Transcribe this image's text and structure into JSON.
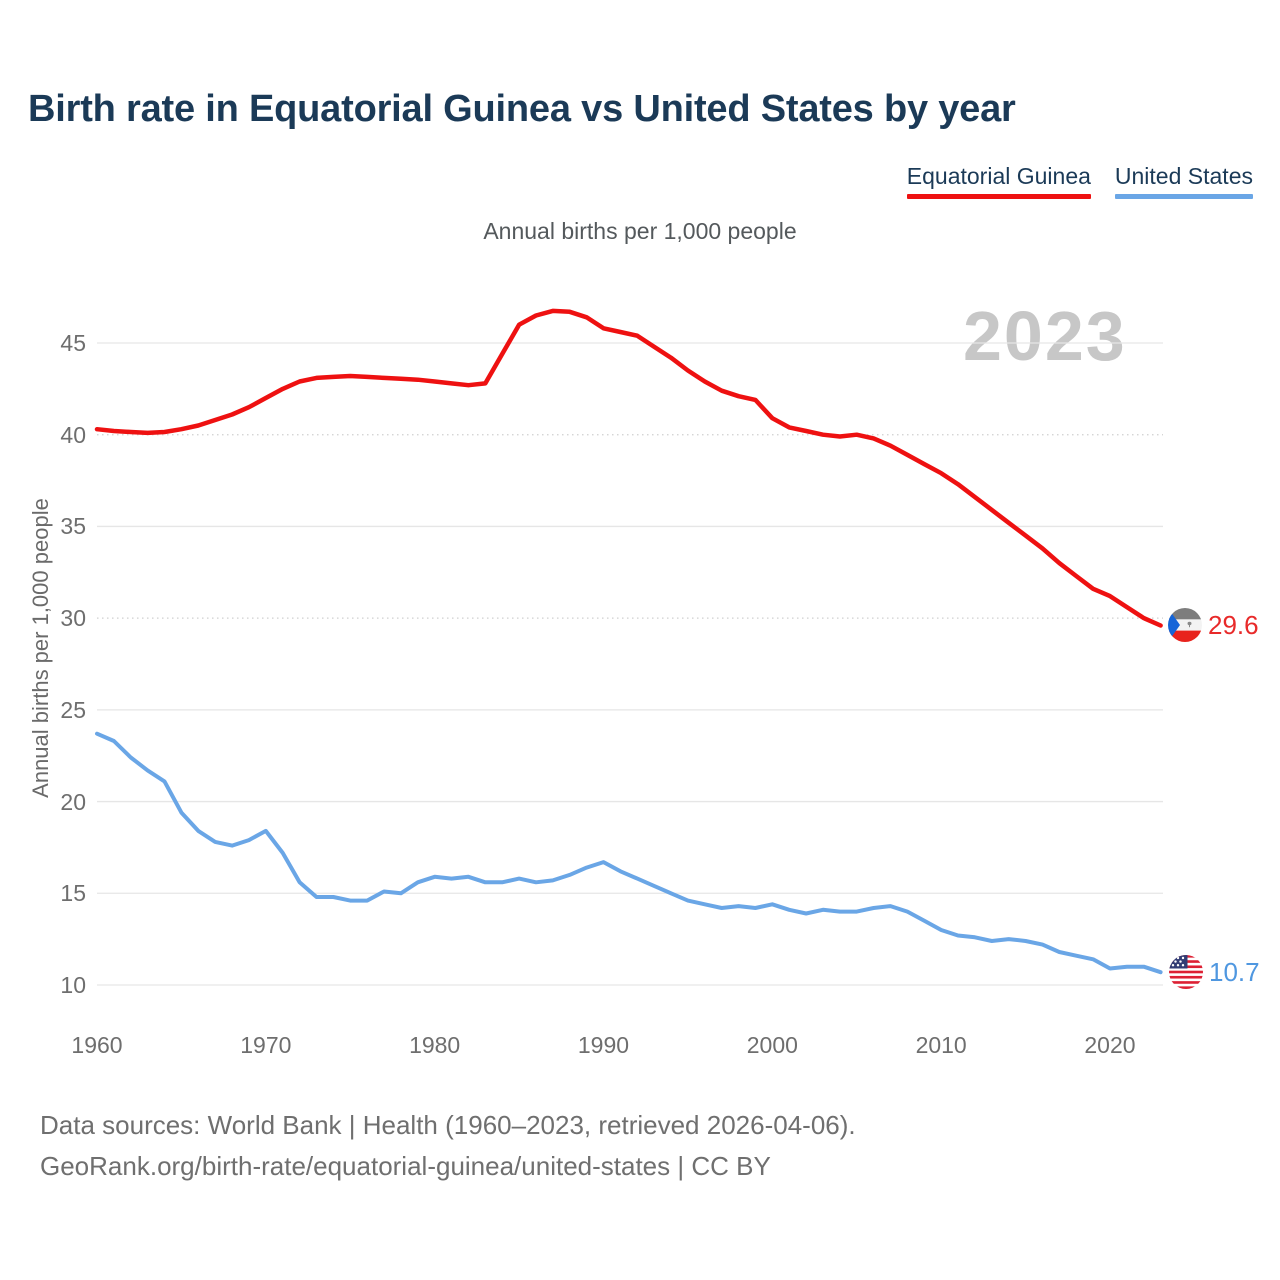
{
  "header": {
    "title": "Birth rate in Equatorial Guinea vs United States by year"
  },
  "legend": {
    "position": "top-right",
    "items": [
      {
        "label": "Equatorial Guinea",
        "color": "#ee1111"
      },
      {
        "label": "United States",
        "color": "#6aa6e6"
      }
    ]
  },
  "subtitle": "Annual births per 1,000 people",
  "watermark": "2023",
  "chart_data": {
    "type": "line",
    "title": "Birth rate in Equatorial Guinea vs United States by year",
    "xlabel": "",
    "ylabel": "Annual births per 1,000 people",
    "xticks": [
      1960,
      1970,
      1980,
      1990,
      2000,
      2010,
      2020
    ],
    "yticks": [
      45,
      40,
      35,
      30,
      25,
      20,
      15,
      10
    ],
    "dotted_gridlines": [
      40,
      30
    ],
    "xlim": [
      1960,
      2023
    ],
    "ylim": [
      8,
      48.5
    ],
    "grid": "horizontal-only",
    "x": [
      1960,
      1961,
      1962,
      1963,
      1964,
      1965,
      1966,
      1967,
      1968,
      1969,
      1970,
      1971,
      1972,
      1973,
      1974,
      1975,
      1976,
      1977,
      1978,
      1979,
      1980,
      1981,
      1982,
      1983,
      1984,
      1985,
      1986,
      1987,
      1988,
      1989,
      1990,
      1991,
      1992,
      1993,
      1994,
      1995,
      1996,
      1997,
      1998,
      1999,
      2000,
      2001,
      2002,
      2003,
      2004,
      2005,
      2006,
      2007,
      2008,
      2009,
      2010,
      2011,
      2012,
      2013,
      2014,
      2015,
      2016,
      2017,
      2018,
      2019,
      2020,
      2021,
      2022,
      2023
    ],
    "series": [
      {
        "name": "Equatorial Guinea",
        "color": "#ee1111",
        "end_value": 29.6,
        "end_label": "29.6",
        "flag": "equatorial-guinea",
        "values": [
          40.3,
          40.2,
          40.15,
          40.1,
          40.15,
          40.3,
          40.5,
          40.8,
          41.1,
          41.5,
          42.0,
          42.5,
          42.9,
          43.1,
          43.15,
          43.2,
          43.15,
          43.1,
          43.05,
          43.0,
          42.9,
          42.8,
          42.7,
          42.8,
          44.4,
          46.0,
          46.5,
          46.75,
          46.7,
          46.4,
          45.8,
          45.6,
          45.4,
          44.8,
          44.2,
          43.5,
          42.9,
          42.4,
          42.1,
          41.9,
          40.9,
          40.4,
          40.2,
          40.0,
          39.9,
          40.0,
          39.8,
          39.4,
          38.9,
          38.4,
          37.9,
          37.3,
          36.6,
          35.9,
          35.2,
          34.5,
          33.8,
          33.0,
          32.3,
          31.6,
          31.2,
          30.6,
          30.0,
          29.6
        ]
      },
      {
        "name": "United States",
        "color": "#6aa6e6",
        "end_value": 10.7,
        "end_label": "10.7",
        "flag": "united-states",
        "values": [
          23.7,
          23.3,
          22.4,
          21.7,
          21.1,
          19.4,
          18.4,
          17.8,
          17.6,
          17.9,
          18.4,
          17.2,
          15.6,
          14.8,
          14.8,
          14.6,
          14.6,
          15.1,
          15.0,
          15.6,
          15.9,
          15.8,
          15.9,
          15.6,
          15.6,
          15.8,
          15.6,
          15.7,
          16.0,
          16.4,
          16.7,
          16.2,
          15.8,
          15.4,
          15.0,
          14.6,
          14.4,
          14.2,
          14.3,
          14.2,
          14.4,
          14.1,
          13.9,
          14.1,
          14.0,
          14.0,
          14.2,
          14.3,
          14.0,
          13.5,
          13.0,
          12.7,
          12.6,
          12.4,
          12.5,
          12.4,
          12.2,
          11.8,
          11.6,
          11.4,
          10.9,
          11.0,
          11.0,
          10.7
        ]
      }
    ]
  },
  "footer": {
    "line1": "Data sources: World Bank | Health (1960–2023, retrieved 2026-04-06).",
    "line2": "GeoRank.org/birth-rate/equatorial-guinea/united-states | CC BY"
  },
  "colors": {
    "title": "#1b3a57",
    "axis_text": "#6e6e6e",
    "gridline": "#e6e6e6",
    "gridline_dotted": "#cfcfcf",
    "watermark": "#c7c7c7",
    "footer_text": "#6f6f6f"
  }
}
